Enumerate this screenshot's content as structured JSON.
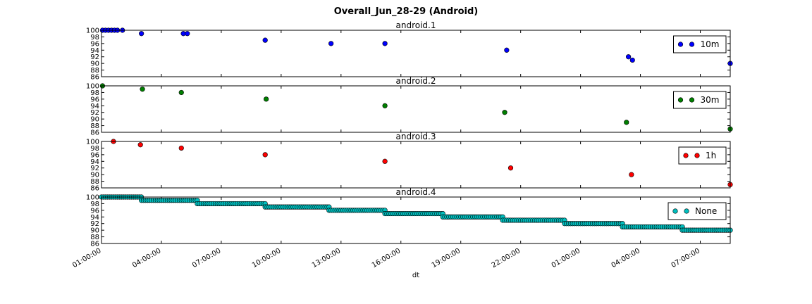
{
  "figure": {
    "title": "Overall_Jun_28-29 (Android)",
    "xlabel": "dt"
  },
  "chart_data": {
    "type": "scatter",
    "x_unit": "hours since 01:00:00",
    "x_ticks": [
      {
        "x": 0,
        "label": "01:00:00"
      },
      {
        "x": 3,
        "label": "04:00:00"
      },
      {
        "x": 6,
        "label": "07:00:00"
      },
      {
        "x": 9,
        "label": "10:00:00"
      },
      {
        "x": 12,
        "label": "13:00:00"
      },
      {
        "x": 15,
        "label": "16:00:00"
      },
      {
        "x": 18,
        "label": "19:00:00"
      },
      {
        "x": 21,
        "label": "22:00:00"
      },
      {
        "x": 24,
        "label": "01:00:00"
      },
      {
        "x": 27,
        "label": "04:00:00"
      },
      {
        "x": 30,
        "label": "07:00:00"
      }
    ],
    "xlim": [
      0,
      31.5
    ],
    "ylim": [
      86,
      100
    ],
    "y_ticks": [
      86,
      88,
      90,
      92,
      94,
      96,
      98,
      100
    ],
    "panels": [
      {
        "title": "android.1",
        "series_name": "10m",
        "color": "#0000ff",
        "legend": "right",
        "points": [
          [
            0.05,
            100
          ],
          [
            0.2,
            100
          ],
          [
            0.35,
            100
          ],
          [
            0.5,
            100
          ],
          [
            0.65,
            100
          ],
          [
            0.8,
            100
          ],
          [
            1.05,
            100
          ],
          [
            2.0,
            99
          ],
          [
            4.1,
            99
          ],
          [
            4.3,
            99
          ],
          [
            8.2,
            97
          ],
          [
            11.5,
            96
          ],
          [
            14.2,
            96
          ],
          [
            20.3,
            94
          ],
          [
            26.4,
            92
          ],
          [
            26.6,
            91
          ],
          [
            31.5,
            90
          ]
        ]
      },
      {
        "title": "android.2",
        "series_name": "30m",
        "color": "#007f00",
        "legend": "right",
        "points": [
          [
            0.05,
            100
          ],
          [
            2.05,
            99
          ],
          [
            4.0,
            98
          ],
          [
            8.25,
            96
          ],
          [
            14.2,
            94
          ],
          [
            20.2,
            92
          ],
          [
            26.3,
            89
          ],
          [
            31.5,
            87
          ]
        ]
      },
      {
        "title": "android.3",
        "series_name": "1h",
        "color": "#ff0000",
        "legend": "right",
        "points": [
          [
            0.6,
            100
          ],
          [
            1.95,
            99
          ],
          [
            4.0,
            98
          ],
          [
            8.2,
            96
          ],
          [
            14.2,
            94
          ],
          [
            20.5,
            92
          ],
          [
            26.55,
            90
          ],
          [
            31.5,
            87
          ]
        ]
      },
      {
        "title": "android.4",
        "series_name": "None",
        "color": "#00bfbf",
        "legend": "right",
        "levels": [
          [
            0,
            2,
            100
          ],
          [
            2,
            4.8,
            99
          ],
          [
            4.8,
            8.2,
            98
          ],
          [
            8.2,
            11.4,
            97
          ],
          [
            11.4,
            14.2,
            96
          ],
          [
            14.2,
            17.1,
            95
          ],
          [
            17.1,
            20.1,
            94
          ],
          [
            20.1,
            23.2,
            93
          ],
          [
            23.2,
            26.1,
            92
          ],
          [
            26.1,
            29.1,
            91
          ],
          [
            29.1,
            31.5,
            90
          ]
        ]
      }
    ]
  }
}
